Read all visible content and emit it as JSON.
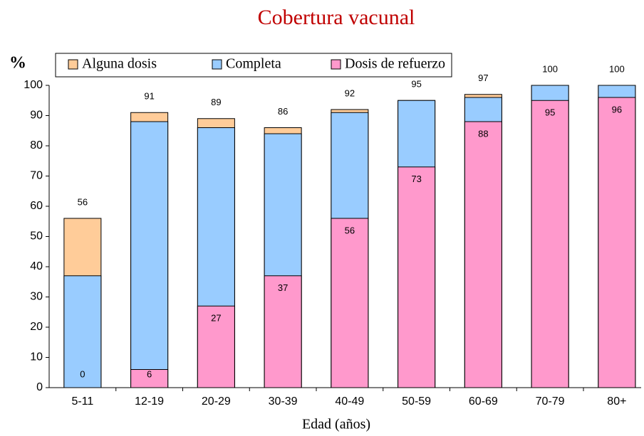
{
  "chart_data": {
    "type": "bar",
    "title": "Cobertura vacunal",
    "y_label": "%",
    "x_label": "Edad (años)",
    "categories": [
      "5-11",
      "12-19",
      "20-29",
      "30-39",
      "40-49",
      "50-59",
      "60-69",
      "70-79",
      "80+"
    ],
    "series": [
      {
        "name": "Alguna dosis",
        "color": "#ffcc99",
        "values": [
          56,
          91,
          89,
          86,
          92,
          95,
          97,
          100,
          100
        ],
        "show_labels": true,
        "label_position": "above"
      },
      {
        "name": "Completa",
        "color": "#99ccff",
        "values": [
          37,
          88,
          86,
          84,
          91,
          95,
          96,
          100,
          100
        ],
        "show_labels": false
      },
      {
        "name": "Dosis de refuerzo",
        "color": "#ff99cc",
        "values": [
          0,
          6,
          27,
          37,
          56,
          73,
          88,
          95,
          96
        ],
        "show_labels": true,
        "label_position": "inside"
      }
    ],
    "overlap": true,
    "ylim": [
      0,
      100
    ],
    "yticks": [
      0,
      10,
      20,
      30,
      40,
      50,
      60,
      70,
      80,
      90,
      100
    ]
  }
}
